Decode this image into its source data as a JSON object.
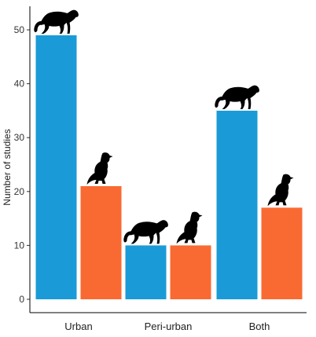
{
  "chart_data": {
    "type": "bar",
    "categories": [
      "Urban",
      "Peri-urban",
      "Both"
    ],
    "series": [
      {
        "values": [
          49,
          10,
          35
        ],
        "color": "#1a9bd7",
        "icon": "big-cat-icon"
      },
      {
        "values": [
          21,
          10,
          17
        ],
        "color": "#f96a33",
        "icon": "vulture-icon"
      }
    ],
    "ylabel": "Number of studies",
    "ylim": [
      0,
      52
    ],
    "yticks": [
      0,
      10,
      20,
      30,
      40,
      50
    ],
    "grid": false,
    "legend": "none"
  }
}
